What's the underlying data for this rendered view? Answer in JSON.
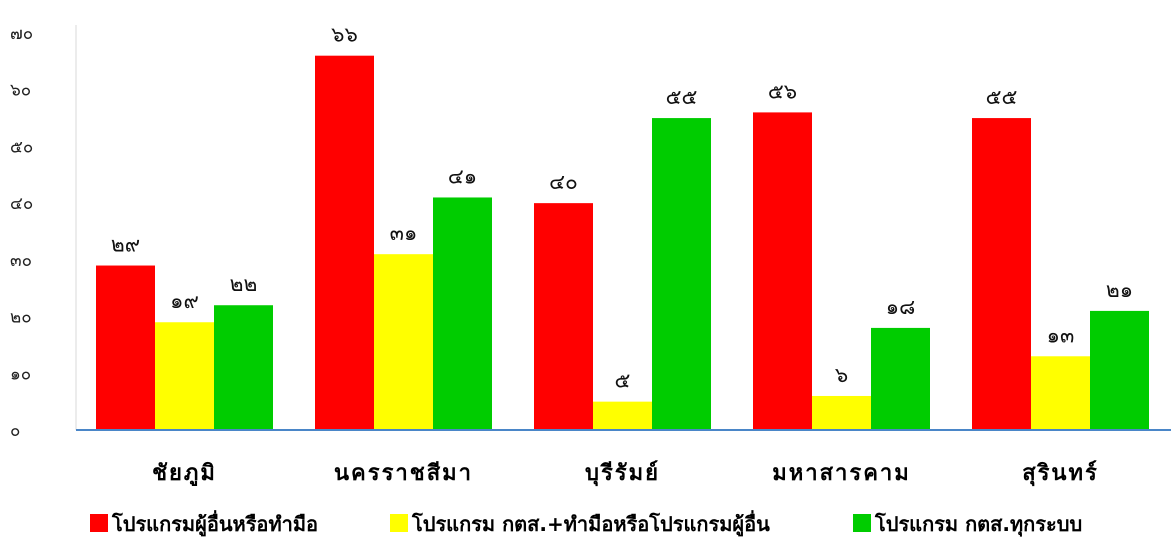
{
  "chart_data": {
    "type": "bar",
    "title": "",
    "xlabel": "",
    "ylabel": "",
    "ylim": [
      0,
      70
    ],
    "yticks": [
      "๐",
      "๑๐",
      "๒๐",
      "๓๐",
      "๔๐",
      "๕๐",
      "๖๐",
      "๗๐"
    ],
    "categories": [
      "ชัยภูมิ",
      "นครราชสีมา",
      "บุรีรัมย์",
      "มหาสารคาม",
      "สุรินทร์"
    ],
    "series": [
      {
        "name": "โปรแกรมผู้อื่นหรือทำมือ",
        "color": "#ff0000",
        "values": [
          29,
          66,
          40,
          56,
          55
        ],
        "labels": [
          "๒๙",
          "๖๖",
          "๔๐",
          "๕๖",
          "๕๕"
        ]
      },
      {
        "name": "โปรแกรม กตส.+ทำมือหรือโปรแกรมผู้อื่น",
        "color": "#ffff00",
        "values": [
          19,
          31,
          5,
          6,
          13
        ],
        "labels": [
          "๑๙",
          "๓๑",
          "๕",
          "๖",
          "๑๓"
        ]
      },
      {
        "name": "โปรแกรม กตส.ทุกระบบ",
        "color": "#00cc00",
        "values": [
          22,
          41,
          55,
          18,
          21
        ],
        "labels": [
          "๒๒",
          "๔๑",
          "๕๕",
          "๑๘",
          "๒๑"
        ]
      }
    ],
    "legend_position": "bottom",
    "grid": false,
    "axis_color": "#4a86c8"
  }
}
